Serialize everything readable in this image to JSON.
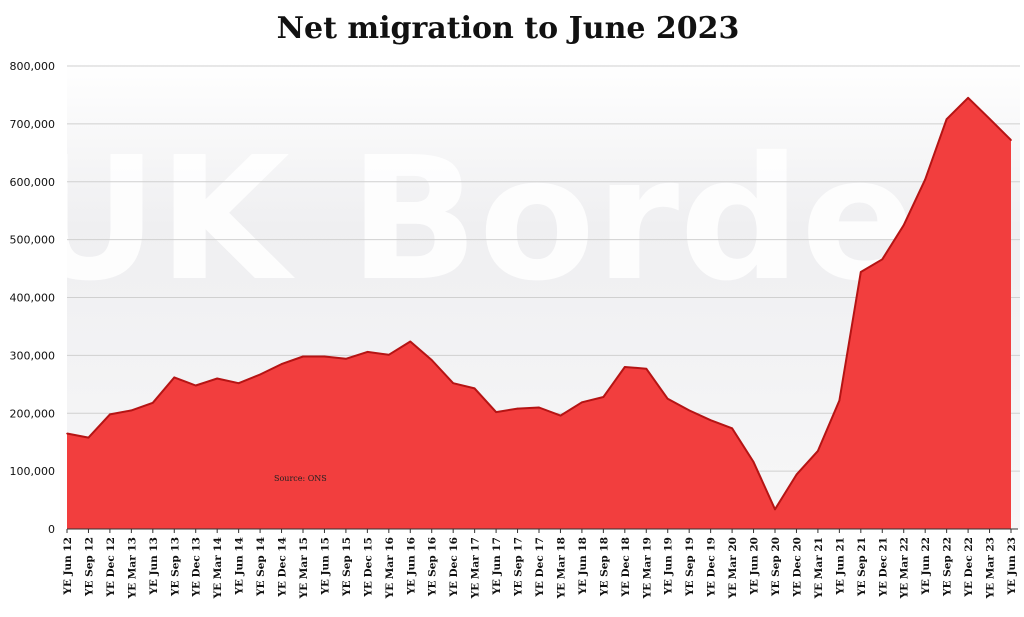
{
  "chart_data": {
    "type": "area",
    "title": "Net migration to June 2023",
    "xlabel": "",
    "ylabel": "",
    "ylim": [
      0,
      800000
    ],
    "yticks": [
      0,
      100000,
      200000,
      300000,
      400000,
      500000,
      600000,
      700000,
      800000
    ],
    "ytick_labels": [
      "0",
      "100,000",
      "200,000",
      "300,000",
      "400,000",
      "500,000",
      "600,000",
      "700,000",
      "800,000"
    ],
    "grid": true,
    "legend": "none",
    "fill_color": "#f23e3e",
    "line_color": "#b51414",
    "x": [
      "YE Jun 12",
      "YE Sep 12",
      "YE Dec 12",
      "YE Mar 13",
      "YE Jun 13",
      "YE Sep 13",
      "YE Dec 13",
      "YE Mar 14",
      "YE Jun 14",
      "YE Sep 14",
      "YE Dec 14",
      "YE Mar 15",
      "YE Jun 15",
      "YE Sep 15",
      "YE Dec 15",
      "YE Mar 16",
      "YE Jun 16",
      "YE Sep 16",
      "YE Dec 16",
      "YE Mar 17",
      "YE Jun 17",
      "YE Sep 17",
      "YE Dec 17",
      "YE Mar 18",
      "YE Jun 18",
      "YE Sep 18",
      "YE Dec 18",
      "YE Mar 19",
      "YE Jun 19",
      "YE Sep 19",
      "YE Dec 19",
      "YE Mar 20",
      "YE Jun 20",
      "YE Sep 20",
      "YE Dec 20",
      "YE Mar 21",
      "YE Jun 21",
      "YE Sep 21",
      "YE Dec 21",
      "YE Mar 22",
      "YE Jun 22",
      "YE Sep 22",
      "YE Dec 22",
      "YE Mar 23",
      "YE Jun 23"
    ],
    "values": [
      165000,
      158000,
      198000,
      205000,
      218000,
      262000,
      248000,
      260000,
      252000,
      267000,
      285000,
      298000,
      298000,
      294000,
      306000,
      301000,
      324000,
      292000,
      252000,
      243000,
      202000,
      208000,
      210000,
      196000,
      219000,
      228000,
      280000,
      277000,
      225000,
      205000,
      188000,
      174000,
      116000,
      34000,
      94000,
      135000,
      222000,
      444000,
      466000,
      525000,
      604000,
      708000,
      745000,
      709000,
      672000
    ],
    "annotations": [
      "Source: ONS"
    ]
  },
  "watermark": "UK Border"
}
